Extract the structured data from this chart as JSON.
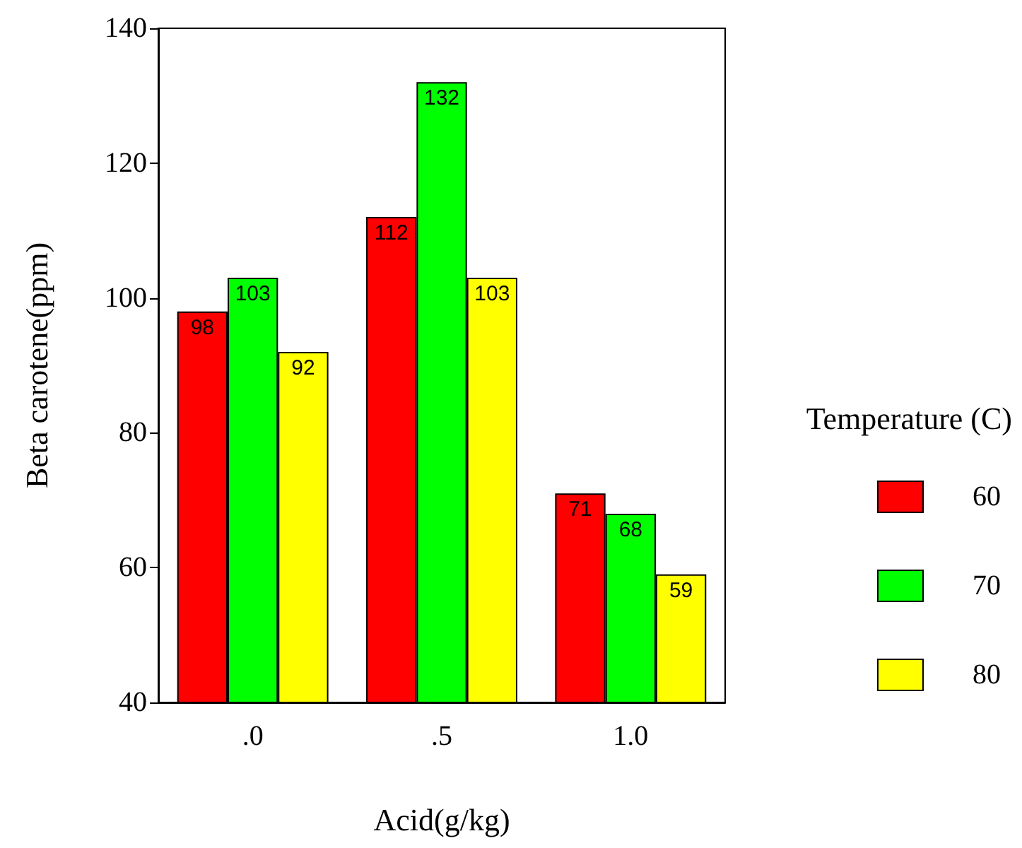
{
  "chart_data": {
    "type": "bar",
    "xlabel": "Acid(g/kg)",
    "ylabel": "Beta carotene(ppm)",
    "legend_title": "Temperature (C)",
    "categories": [
      ".0",
      ".5",
      "1.0"
    ],
    "series": [
      {
        "name": "60",
        "color": "#ff0000",
        "values": [
          98,
          112,
          71
        ]
      },
      {
        "name": "70",
        "color": "#00ff00",
        "values": [
          103,
          132,
          68
        ]
      },
      {
        "name": "80",
        "color": "#ffff00",
        "values": [
          92,
          103,
          59
        ]
      }
    ],
    "ylim": [
      40,
      140
    ],
    "yticks": [
      40,
      60,
      80,
      100,
      120,
      140
    ],
    "grid": false,
    "legend": "right",
    "data_labels": true
  }
}
